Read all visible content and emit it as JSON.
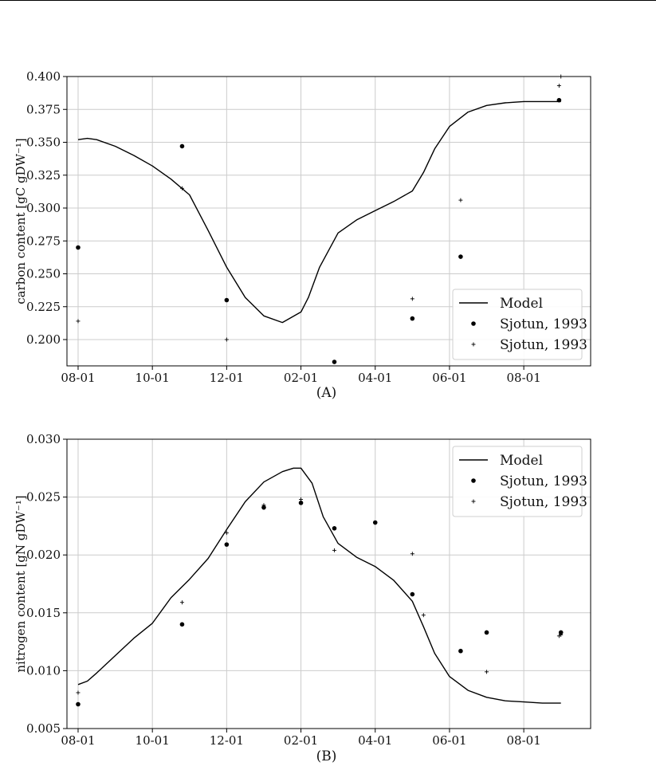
{
  "colors": {
    "line": "#000000",
    "grid": "#cccccc",
    "axis": "#000000",
    "legend_border": "#cfcfcf"
  },
  "chart_data": [
    {
      "type": "line",
      "caption": "(A)",
      "ylabel": "carbon content [gC gDW⁻¹]",
      "xlabel": "",
      "ylim": [
        0.18,
        0.4
      ],
      "xlim": [
        -0.3,
        13.8
      ],
      "grid": true,
      "legend_position": "lower-right",
      "x_ticks": [
        0,
        2,
        4,
        6,
        8,
        10,
        12
      ],
      "x_tick_labels": [
        "08-01",
        "10-01",
        "12-01",
        "02-01",
        "04-01",
        "06-01",
        "08-01"
      ],
      "y_ticks": [
        0.2,
        0.225,
        0.25,
        0.275,
        0.3,
        0.325,
        0.35,
        0.375,
        0.4
      ],
      "y_tick_labels": [
        "0.200",
        "0.225",
        "0.250",
        "0.275",
        "0.300",
        "0.325",
        "0.350",
        "0.375",
        "0.400"
      ],
      "series": [
        {
          "name": "Model",
          "kind": "line",
          "x": [
            0.0,
            0.25,
            0.5,
            1.0,
            1.5,
            2.0,
            2.5,
            3.0,
            3.5,
            4.0,
            4.5,
            5.0,
            5.5,
            6.0,
            6.2,
            6.5,
            7.0,
            7.5,
            8.0,
            8.5,
            9.0,
            9.3,
            9.6,
            10.0,
            10.5,
            11.0,
            11.5,
            12.0,
            12.5,
            13.0
          ],
          "y": [
            0.352,
            0.353,
            0.352,
            0.347,
            0.34,
            0.332,
            0.322,
            0.31,
            0.283,
            0.255,
            0.232,
            0.218,
            0.213,
            0.221,
            0.232,
            0.255,
            0.281,
            0.291,
            0.298,
            0.305,
            0.313,
            0.327,
            0.345,
            0.362,
            0.373,
            0.378,
            0.38,
            0.381,
            0.381,
            0.381
          ]
        },
        {
          "name": "Sjotun, 1993",
          "kind": "dot",
          "x": [
            0.0,
            2.8,
            4.0,
            6.9,
            9.0,
            10.3,
            12.95
          ],
          "y": [
            0.27,
            0.347,
            0.23,
            0.183,
            0.216,
            0.263,
            0.382
          ]
        },
        {
          "name": "Sjotun, 1993",
          "kind": "plus",
          "x": [
            0.0,
            2.8,
            4.0,
            9.0,
            10.3,
            12.95,
            13.0
          ],
          "y": [
            0.214,
            0.315,
            0.2,
            0.231,
            0.306,
            0.393,
            0.4
          ]
        }
      ]
    },
    {
      "type": "line",
      "caption": "(B)",
      "ylabel": "nitrogen content [gN gDW⁻¹]",
      "xlabel": "",
      "ylim": [
        0.005,
        0.03
      ],
      "xlim": [
        -0.3,
        13.8
      ],
      "grid": true,
      "legend_position": "upper-right",
      "x_ticks": [
        0,
        2,
        4,
        6,
        8,
        10,
        12
      ],
      "x_tick_labels": [
        "08-01",
        "10-01",
        "12-01",
        "02-01",
        "04-01",
        "06-01",
        "08-01"
      ],
      "y_ticks": [
        0.005,
        0.01,
        0.015,
        0.02,
        0.025,
        0.03
      ],
      "y_tick_labels": [
        "0.005",
        "0.010",
        "0.015",
        "0.020",
        "0.025",
        "0.030"
      ],
      "series": [
        {
          "name": "Model",
          "kind": "line",
          "x": [
            0.0,
            0.25,
            0.5,
            1.0,
            1.5,
            2.0,
            2.5,
            3.0,
            3.5,
            4.0,
            4.5,
            5.0,
            5.5,
            5.8,
            6.0,
            6.3,
            6.6,
            7.0,
            7.5,
            8.0,
            8.5,
            9.0,
            9.3,
            9.6,
            10.0,
            10.5,
            11.0,
            11.5,
            12.0,
            12.5,
            13.0
          ],
          "y": [
            0.0088,
            0.0091,
            0.0098,
            0.0113,
            0.0128,
            0.0141,
            0.0163,
            0.0179,
            0.0197,
            0.0222,
            0.0246,
            0.0263,
            0.0272,
            0.0275,
            0.0275,
            0.0262,
            0.0233,
            0.021,
            0.0198,
            0.019,
            0.0178,
            0.016,
            0.0138,
            0.0115,
            0.0095,
            0.0083,
            0.0077,
            0.0074,
            0.0073,
            0.0072,
            0.0072
          ]
        },
        {
          "name": "Sjotun, 1993",
          "kind": "dot",
          "x": [
            0.0,
            2.8,
            4.0,
            5.0,
            6.0,
            6.9,
            8.0,
            9.0,
            10.3,
            11.0,
            13.0
          ],
          "y": [
            0.0071,
            0.014,
            0.0209,
            0.0241,
            0.0245,
            0.0223,
            0.0228,
            0.0166,
            0.0117,
            0.0133,
            0.0133
          ]
        },
        {
          "name": "Sjotun, 1993",
          "kind": "plus",
          "x": [
            0.0,
            2.8,
            4.0,
            5.0,
            6.0,
            6.9,
            9.0,
            9.3,
            11.0,
            12.95,
            13.0
          ],
          "y": [
            0.0081,
            0.0159,
            0.0219,
            0.0243,
            0.0248,
            0.0204,
            0.0201,
            0.0148,
            0.0099,
            0.013,
            0.0131
          ]
        }
      ]
    }
  ]
}
